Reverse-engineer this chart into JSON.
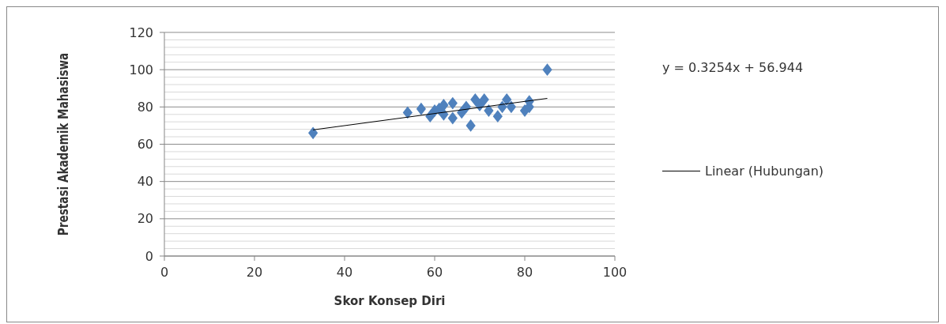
{
  "chart_data": {
    "type": "scatter",
    "xlabel": "Skor Konsep Diri",
    "ylabel": "Prestasi Akademik Mahasiswa",
    "xlim": [
      0,
      100
    ],
    "xticks": [
      0,
      20,
      40,
      60,
      80,
      100
    ],
    "ylim": [
      0,
      120
    ],
    "yticks": [
      0,
      {
        "value": 4,
        "label": null
      },
      {
        "value": 8,
        "label": null
      },
      {
        "value": 12,
        "label": null
      },
      {
        "value": 16,
        "label": null
      },
      20,
      {
        "value": 24,
        "label": null
      },
      {
        "value": 28,
        "label": null
      },
      {
        "value": 32,
        "label": null
      },
      {
        "value": 36,
        "label": null
      },
      40,
      {
        "value": 44,
        "label": null
      },
      {
        "value": 48,
        "label": null
      },
      {
        "value": 52,
        "label": null
      },
      {
        "value": 56,
        "label": null
      },
      60,
      {
        "value": 64,
        "label": null
      },
      {
        "value": 68,
        "label": null
      },
      {
        "value": 72,
        "label": null
      },
      {
        "value": 76,
        "label": null
      },
      80,
      {
        "value": 84,
        "label": null
      },
      {
        "value": 88,
        "label": null
      },
      {
        "value": 92,
        "label": null
      },
      {
        "value": 96,
        "label": null
      },
      100,
      {
        "value": 104,
        "label": null
      },
      {
        "value": 108,
        "label": null
      },
      {
        "value": 112,
        "label": null
      },
      {
        "value": 116,
        "label": null
      },
      120
    ],
    "grid": "y",
    "legend": "right",
    "marker": "diamond",
    "annotations": [
      "y = 0.3254x + 56.944"
    ],
    "series": [
      {
        "color": "#4f81bd",
        "x": [
          33,
          54,
          57,
          59,
          60,
          61,
          62,
          62,
          64,
          64,
          66,
          67,
          68,
          69,
          70,
          71,
          72,
          74,
          75,
          76,
          77,
          80,
          81,
          81,
          85
        ],
        "values": [
          66,
          77,
          79,
          75,
          78,
          79,
          76,
          81,
          82,
          74,
          77,
          80,
          70,
          84,
          81,
          84,
          78,
          75,
          80,
          84,
          80,
          78,
          83,
          80,
          100
        ]
      },
      {
        "type": "line",
        "name": "Linear (Hubungan)",
        "color": "#000000",
        "marker": "none",
        "x": [
          33,
          85
        ],
        "values": [
          67.7,
          84.6
        ]
      }
    ]
  }
}
